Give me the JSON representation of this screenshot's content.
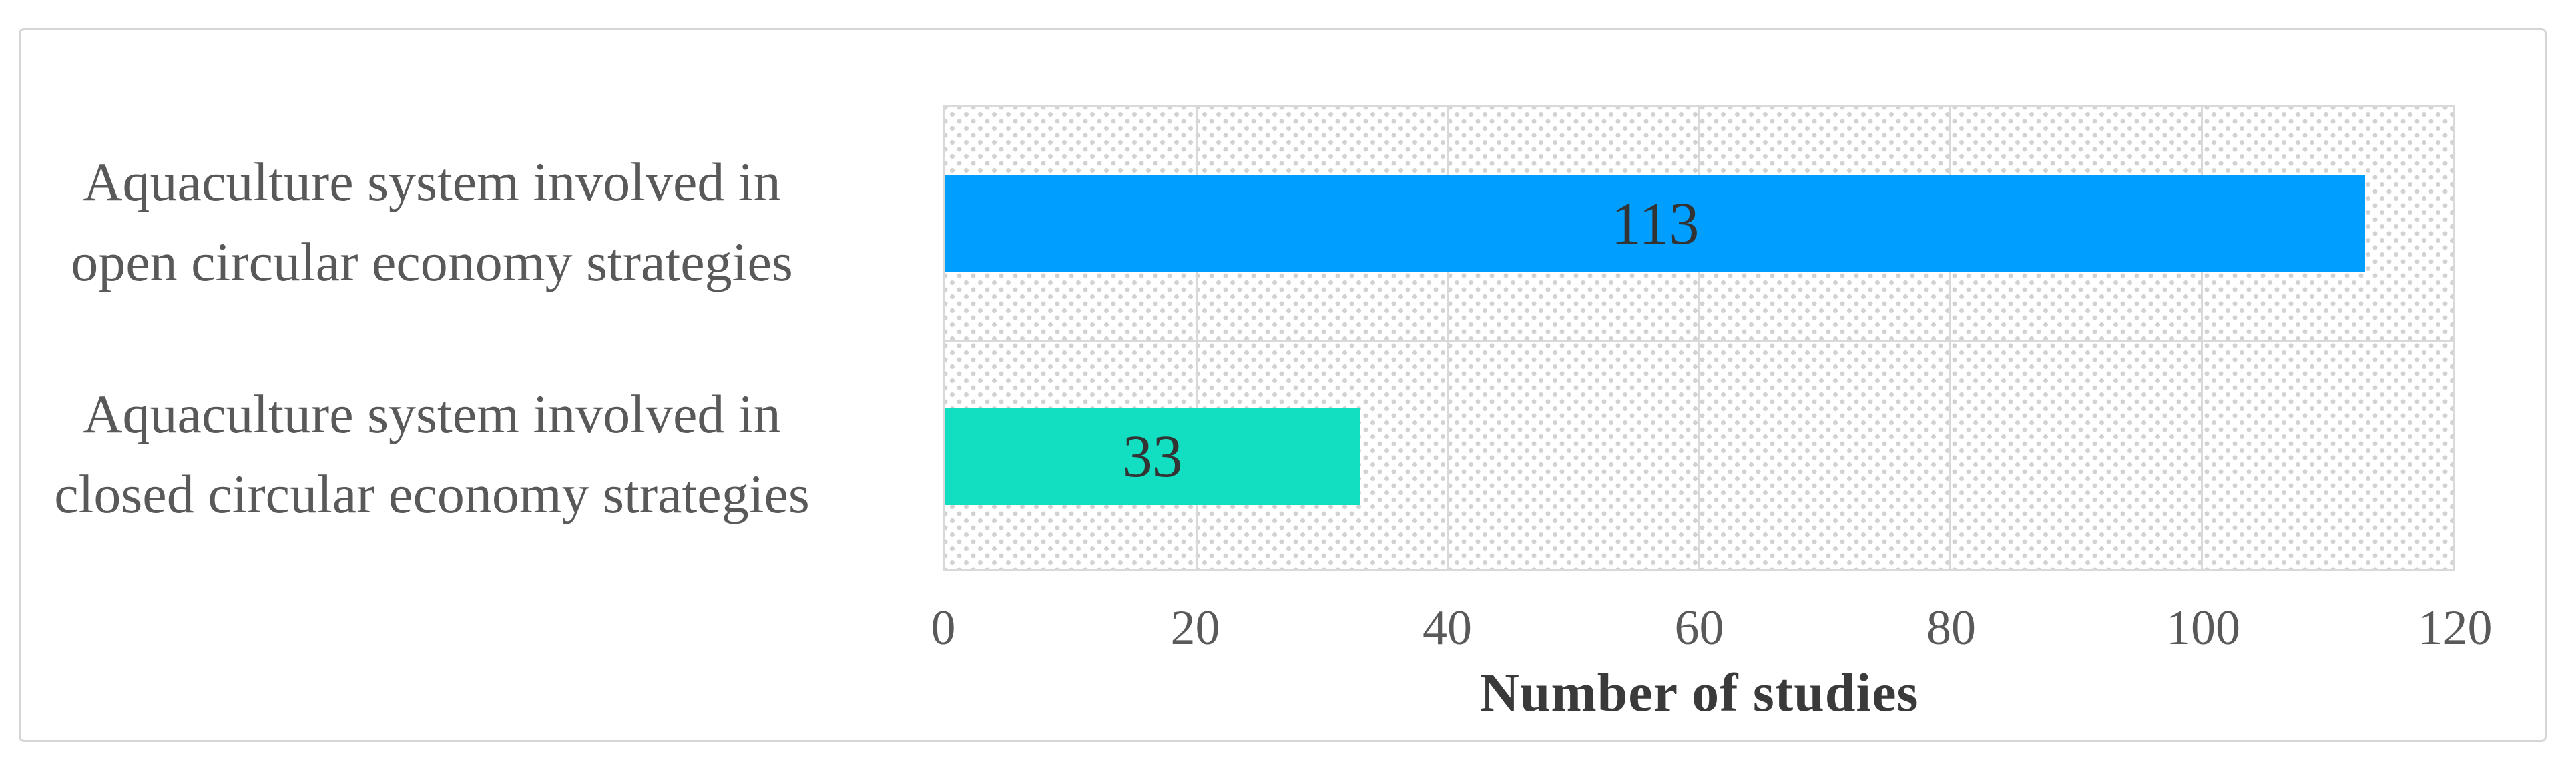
{
  "figure": {
    "background_color": "#ffffff",
    "frame_border_color": "#d5d5d5",
    "plot_border_color": "#d9d9d9",
    "gridline_color": "#d9d9d9",
    "hatch_dot_color": "#d2d2d2"
  },
  "chart_data": {
    "type": "bar",
    "orientation": "horizontal",
    "title": "",
    "xlabel": "Number of studies",
    "ylabel": "",
    "categories": [
      "Aquaculture system involved in open circular economy strategies",
      "Aquaculture system involved in closed circular economy strategies"
    ],
    "category_label_lines": [
      [
        "Aquaculture system involved in",
        "open circular economy strategies"
      ],
      [
        "Aquaculture system involved in",
        "closed circular economy strategies"
      ]
    ],
    "values": [
      113,
      33
    ],
    "data_labels": [
      "113",
      "33"
    ],
    "bar_colors": [
      "#009fff",
      "#12dfc2"
    ],
    "xlim": [
      0,
      120
    ],
    "xticks": [
      0,
      20,
      40,
      60,
      80,
      100,
      120
    ],
    "grid": "vertical gridlines every 20 units; horizontal gridline between category rows; dotted diagonal hatch fill in plot area",
    "legend_position": "none",
    "tick_label_color": "#595959",
    "category_label_color": "#595959",
    "data_label_color": "#333333",
    "axis_title_color": "#3a3a3a",
    "data_label_position": "center"
  }
}
